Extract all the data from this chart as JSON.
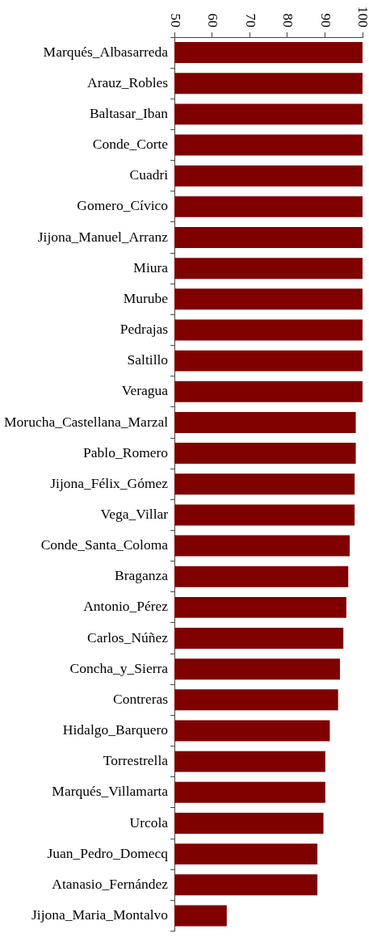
{
  "chart_data": {
    "type": "bar",
    "orientation": "horizontal",
    "categories": [
      "Marqués_Albasarreda",
      "Arauz_Robles",
      "Baltasar_Iban",
      "Conde_Corte",
      "Cuadri",
      "Gomero_Cívico",
      "Jijona_Manuel_Arranz",
      "Miura",
      "Murube",
      "Pedrajas",
      "Saltillo",
      "Veragua",
      "Morucha_Castellana_Marzal",
      "Pablo_Romero",
      "Jijona_Félix_Gómez",
      "Vega_Villar",
      "Conde_Santa_Coloma",
      "Braganza",
      "Antonio_Pérez",
      "Carlos_Núñez",
      "Concha_y_Sierra",
      "Contreras",
      "Hidalgo_Barquero",
      "Torrestrella",
      "Marqués_Villamarta",
      "Urcola",
      "Juan_Pedro_Domecq",
      "Atanasio_Fernández",
      "Jijona_Maria_Montalvo"
    ],
    "values": [
      100,
      100,
      100,
      100,
      100,
      100,
      100,
      100,
      100,
      100,
      100,
      100,
      98.2,
      98.2,
      97.9,
      97.9,
      96.6,
      96.2,
      95.7,
      94.9,
      94.0,
      93.5,
      91.3,
      90.1,
      90.1,
      89.6,
      88.0,
      88.0,
      63.9
    ],
    "color": "#800000",
    "xlim": [
      50,
      100
    ],
    "xticks": [
      50,
      60,
      70,
      80,
      90,
      100
    ],
    "grid": false,
    "legend": false
  }
}
